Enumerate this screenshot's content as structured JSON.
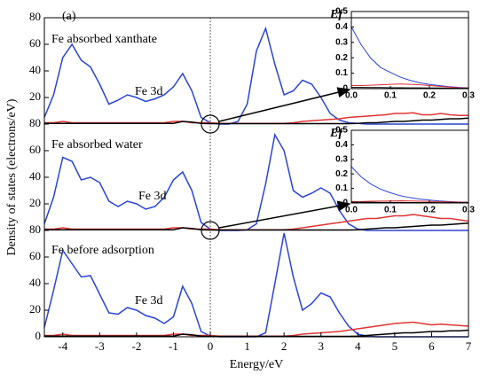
{
  "chart_data": [
    {
      "type": "line",
      "xlabel": "Energy/eV",
      "ylabel": "Density of states (electrons/eV)",
      "annotations": [
        "(a)",
        "Fe absorbed xanthate",
        "Fe 3d",
        "Fe absorbed water",
        "Fe 3d",
        "Fe before adsorption",
        "Fe 3d"
      ],
      "xlim": [
        -4.5,
        7
      ],
      "xticks": [
        -4,
        -3,
        -2,
        -1,
        0,
        1,
        2,
        3,
        4,
        5,
        6,
        7
      ],
      "ylim": [
        0,
        240
      ],
      "yticks": [
        0,
        {
          "value": 20,
          "label": "20"
        },
        {
          "value": 40,
          "label": "40"
        },
        {
          "value": 60,
          "label": "60"
        },
        {
          "value": 80,
          "label": "80"
        },
        {
          "value": 100,
          "label": "20"
        },
        {
          "value": 120,
          "label": "40"
        },
        {
          "value": 140,
          "label": "60"
        },
        {
          "value": 160,
          "label": "80"
        },
        {
          "value": 180,
          "label": "20"
        },
        {
          "value": 200,
          "label": "40"
        },
        {
          "value": 220,
          "label": "60"
        },
        {
          "value": 240,
          "label": "80"
        }
      ],
      "x": [
        -4.5,
        -4.25,
        -4,
        -3.75,
        -3.5,
        -3.25,
        -3,
        -2.75,
        -2.5,
        -2.25,
        -2,
        -1.75,
        -1.5,
        -1.25,
        -1,
        -0.75,
        -0.5,
        -0.25,
        0,
        0.25,
        0.5,
        0.75,
        1,
        1.25,
        1.5,
        1.75,
        2,
        2.25,
        2.5,
        2.75,
        3,
        3.25,
        3.5,
        3.75,
        4,
        4.25,
        4.5,
        4.75,
        5,
        5.25,
        5.5,
        5.75,
        6,
        6.25,
        6.5,
        6.75,
        7
      ],
      "series": [
        {
          "color": "#2a44d6",
          "values": [
            165,
            182,
            210,
            220,
            208,
            203,
            190,
            175,
            178,
            182,
            180,
            177,
            179,
            182,
            188,
            198,
            185,
            165,
            161,
            160,
            160,
            162,
            175,
            215,
            232,
            205,
            182,
            185,
            193,
            190,
            180,
            168,
            163,
            161,
            160.5,
            160,
            160,
            160,
            160,
            160,
            160,
            160,
            160,
            160,
            160,
            160,
            160
          ]
        },
        {
          "color": "#e03434",
          "values": [
            161,
            161,
            162,
            161,
            161,
            161,
            161,
            161,
            161,
            161,
            161,
            161,
            161,
            161,
            162,
            162,
            161,
            161,
            161,
            160.5,
            160.5,
            160.5,
            160.5,
            160.5,
            160.5,
            160.5,
            160.5,
            161,
            162,
            162.5,
            163,
            163.5,
            164,
            165,
            165.5,
            166,
            166.5,
            167,
            168,
            168,
            168.5,
            167,
            167,
            168,
            167,
            166.5,
            166.5
          ]
        },
        {
          "color": "#000000",
          "values": [
            160.5,
            160.5,
            160.5,
            160.5,
            160.5,
            160.5,
            160.5,
            160.5,
            160.5,
            160.5,
            160.5,
            160.5,
            160.5,
            160.5,
            160.5,
            162,
            161.5,
            160.5,
            160.3,
            160.3,
            160.3,
            160.3,
            160.3,
            160.3,
            160.3,
            160.3,
            160.3,
            160.3,
            160.3,
            160.3,
            160.3,
            160.3,
            160.3,
            160.3,
            160.5,
            161,
            161,
            161.5,
            162,
            162,
            162.5,
            163,
            163,
            163.5,
            164,
            164,
            164.5
          ]
        },
        {
          "color": "#2a44d6",
          "values": [
            85,
            105,
            135,
            132,
            118,
            120,
            116,
            102,
            98,
            102,
            100,
            96,
            98,
            105,
            118,
            124,
            110,
            86,
            81,
            80,
            80,
            80,
            80.5,
            85,
            115,
            152,
            140,
            110,
            105,
            108,
            112,
            108,
            95,
            85,
            81,
            80,
            80,
            80,
            80,
            80,
            80,
            80,
            80,
            80,
            80,
            80,
            80
          ]
        },
        {
          "color": "#e03434",
          "values": [
            81,
            81,
            82,
            81,
            81,
            81,
            81,
            81,
            81,
            81,
            81,
            81,
            81,
            81,
            82,
            82,
            81,
            81,
            81,
            80.5,
            80.5,
            80.5,
            80.5,
            80.5,
            80.5,
            80.5,
            80.5,
            81,
            82,
            83,
            84,
            85,
            86,
            87,
            88,
            89,
            89,
            90,
            91,
            91,
            92,
            91,
            90,
            89,
            89,
            88,
            87
          ]
        },
        {
          "color": "#000000",
          "values": [
            80.5,
            80.5,
            80.5,
            80.5,
            80.5,
            80.5,
            80.5,
            80.5,
            80.5,
            80.5,
            80.5,
            80.5,
            80.5,
            80.5,
            80.5,
            82,
            81.5,
            80.5,
            80.3,
            80.3,
            80.3,
            80.3,
            80.3,
            80.3,
            80.3,
            80.3,
            80.3,
            80.3,
            80.3,
            80.3,
            80.3,
            80.3,
            80.3,
            80.3,
            80.5,
            81,
            81.5,
            82,
            82,
            82.5,
            83,
            83.5,
            84,
            84,
            84.5,
            85,
            85.5
          ]
        },
        {
          "color": "#2a44d6",
          "values": [
            7,
            35,
            65,
            55,
            45,
            46,
            32,
            18,
            17,
            22,
            20,
            16,
            14,
            10,
            15,
            38,
            25,
            4,
            0.5,
            0,
            0,
            0,
            0,
            0,
            3,
            40,
            78,
            45,
            20,
            25,
            33,
            30,
            18,
            8,
            2,
            0.5,
            0,
            0,
            0,
            0,
            0,
            0,
            0,
            0,
            0,
            0,
            0
          ]
        },
        {
          "color": "#e03434",
          "values": [
            1,
            1,
            2,
            1,
            1,
            1,
            1,
            1,
            1,
            1,
            1,
            1,
            1,
            1,
            2,
            2,
            1,
            1,
            1,
            0.5,
            0.5,
            0.5,
            0.5,
            0.5,
            0.5,
            0.5,
            0.5,
            1,
            2,
            2.5,
            3,
            3.5,
            4,
            5,
            6,
            7,
            8,
            9,
            10,
            10.5,
            11,
            10,
            9,
            9.5,
            9,
            8.5,
            8
          ]
        },
        {
          "color": "#000000",
          "values": [
            0.5,
            0.5,
            0.5,
            0.5,
            0.5,
            0.5,
            0.5,
            0.5,
            0.5,
            0.5,
            0.5,
            0.5,
            0.5,
            0.5,
            0.5,
            2,
            1.5,
            0.5,
            0.3,
            0.3,
            0.3,
            0.3,
            0.3,
            0.3,
            0.3,
            0.3,
            0.3,
            0.3,
            0.3,
            0.3,
            0.3,
            0.3,
            0.3,
            0.3,
            0.5,
            1,
            1.5,
            2,
            2.5,
            3,
            3,
            3.5,
            4,
            4,
            4.5,
            4.5,
            5
          ]
        }
      ]
    },
    {
      "type": "line",
      "title": "Ef",
      "xlim": [
        0,
        0.3
      ],
      "xticks": [
        {
          "value": 0,
          "label": "0.0"
        },
        0.1,
        0.2,
        0.3
      ],
      "ylim": [
        0,
        0.5
      ],
      "yticks": [
        0,
        0.1,
        0.2,
        0.3,
        0.4,
        0.5
      ],
      "x": [
        0,
        0.025,
        0.05,
        0.075,
        0.1,
        0.125,
        0.15,
        0.175,
        0.2,
        0.225,
        0.25,
        0.275,
        0.3
      ],
      "series": [
        {
          "color": "#2a44d6",
          "values": [
            0.4,
            0.285,
            0.196,
            0.137,
            0.105,
            0.075,
            0.054,
            0.038,
            0.027,
            0.02,
            0.013,
            0.008,
            0.005
          ]
        },
        {
          "color": "#e03434",
          "values": [
            0.02,
            0.02,
            0.022,
            0.025,
            0.028,
            0.03,
            0.028,
            0.025,
            0.02,
            0.015,
            0.01,
            0.006,
            0.004
          ]
        },
        {
          "color": "#000000",
          "values": [
            0.008,
            0.008,
            0.007,
            0.007,
            0.006,
            0.006,
            0.005,
            0.005,
            0.004,
            0.004,
            0.003,
            0.003,
            0.002
          ]
        }
      ]
    },
    {
      "type": "line",
      "title": "Ef",
      "xlim": [
        0,
        0.3
      ],
      "xticks": [
        {
          "value": 0,
          "label": "0.0"
        },
        0.1,
        0.2,
        0.3
      ],
      "ylim": [
        0,
        0.5
      ],
      "yticks": [
        0,
        0.1,
        0.2,
        0.3,
        0.4,
        0.5
      ],
      "x": [
        0,
        0.025,
        0.05,
        0.075,
        0.1,
        0.125,
        0.15,
        0.175,
        0.2,
        0.225,
        0.25,
        0.275,
        0.3
      ],
      "series": [
        {
          "color": "#2a44d6",
          "values": [
            0.25,
            0.18,
            0.13,
            0.095,
            0.07,
            0.05,
            0.037,
            0.027,
            0.02,
            0.014,
            0.01,
            0.007,
            0.005
          ]
        },
        {
          "color": "#e03434",
          "values": [
            0.01,
            0.01,
            0.012,
            0.013,
            0.014,
            0.015,
            0.014,
            0.013,
            0.011,
            0.009,
            0.007,
            0.005,
            0.004
          ]
        },
        {
          "color": "#000000",
          "values": [
            0.005,
            0.005,
            0.005,
            0.004,
            0.004,
            0.004,
            0.003,
            0.003,
            0.003,
            0.002,
            0.002,
            0.002,
            0.002
          ]
        }
      ]
    }
  ]
}
